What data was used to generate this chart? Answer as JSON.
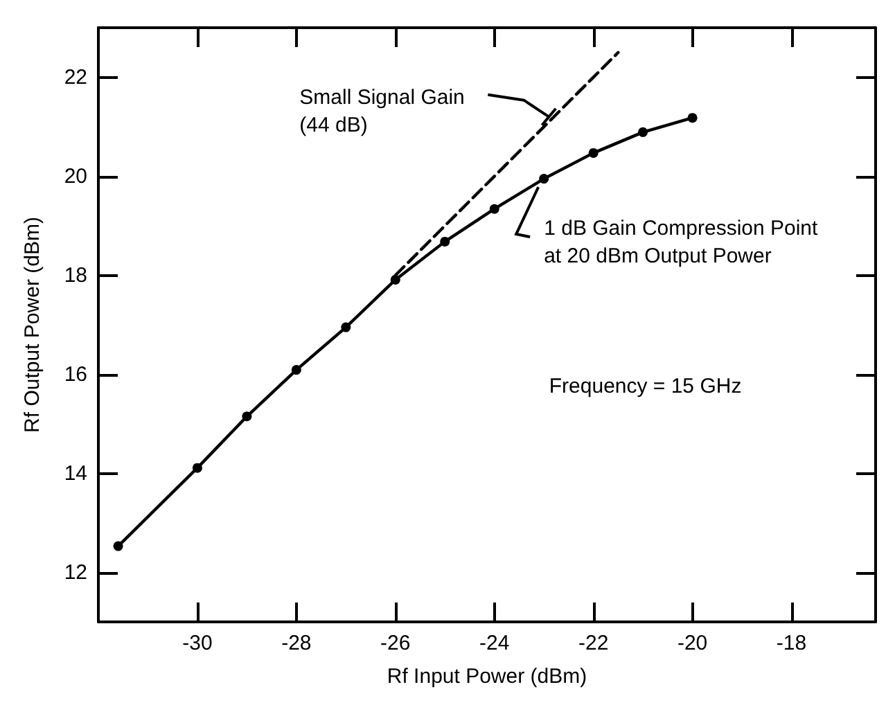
{
  "chart_data": {
    "type": "line",
    "xlabel": "Rf Input Power (dBm)",
    "ylabel": "Rf Output Power (dBm)",
    "xlim": [
      -32,
      -16.3
    ],
    "xticks": [
      -30,
      -28,
      -26,
      -24,
      -22,
      -20,
      -18
    ],
    "ylim": [
      11,
      23
    ],
    "yticks": [
      12,
      14,
      16,
      18,
      20,
      22
    ],
    "grid": false,
    "series": [
      {
        "color": "#000000",
        "line_style": "solid",
        "marker": "circle",
        "x": [
          -31.6,
          -30,
          -29,
          -28,
          -27,
          -26,
          -25,
          -24,
          -23,
          -22,
          -21,
          -20
        ],
        "values": [
          12.53,
          14.11,
          15.15,
          16.09,
          16.95,
          17.91,
          18.68,
          19.34,
          19.95,
          20.47,
          20.89,
          21.18
        ]
      },
      {
        "color": "#000000",
        "line_style": "dashed",
        "marker": "none",
        "x": [
          -26,
          -21.5
        ],
        "values": [
          18.0,
          22.5
        ]
      }
    ],
    "annotations": [
      {
        "text": "Small Signal Gain\n(44 dB)",
        "x": -22.9,
        "y": 21.2
      },
      {
        "text": "1 dB Gain Compression Point\nat 20 dBm Output Power",
        "x": -23,
        "y": 19.95
      },
      "Frequency = 15 GHz"
    ]
  }
}
